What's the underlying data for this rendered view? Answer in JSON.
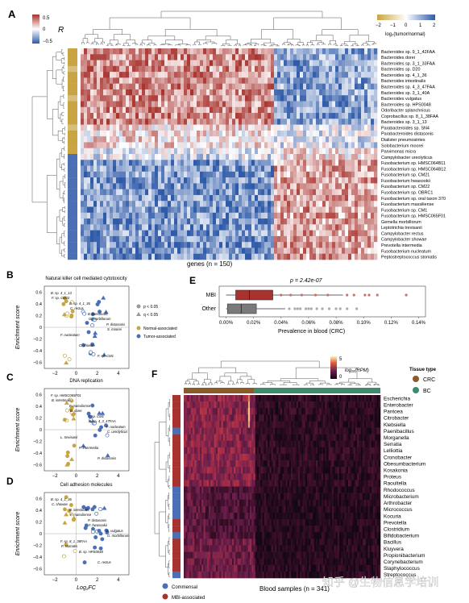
{
  "panel_a": {
    "letter": "A",
    "colorbar_R": {
      "ticks": [
        "0.5",
        "0",
        "−0.5"
      ],
      "label": "R"
    },
    "colorbar_fc": {
      "ticks": [
        "−2",
        "−1",
        "0",
        "1",
        "2"
      ],
      "label": "log₂(tumor/normal)"
    },
    "xlabel": "genes (n = 150)",
    "rows": [
      "Bacteroides sp. 9_1_42FAA",
      "Bacteroides dorei",
      "Bacteroides sp. 3_1_33FAA",
      "Bacteroides sp. D20",
      "Bacteroides sp. 4_1_36",
      "Bacteroides intestinalis",
      "Bacteroides sp. 4_3_47FAA",
      "Bacteroides sp. 3_1_40A",
      "Bacteroides vulgatus",
      "Bacteroides sp. HPS0048",
      "Odoribacter splanchnicus",
      "Coprobacillus sp. 8_1_38FAA",
      "Bacteroides sp. 3_1_13",
      "Parabacteroides sp. SN4",
      "Parabacteroides distasonis",
      "Dialister pneumosintes",
      "Solobacterium moorei",
      "Parvimonas micra",
      "Campylobacter ureolyticus",
      "Fusobacterium sp. HMSC064B11",
      "Fusobacterium sp. HMSC064B12",
      "Fusobacterium sp. CM21",
      "Fusobacterium hwasookii",
      "Fusobacterium sp. CM22",
      "Fusobacterium sp. OBRC1",
      "Fusobacterium sp. oral taxon 370",
      "Fusobacterium massiliense",
      "Fusobacterium sp. CM1",
      "Fusobacterium sp. HMSC065F01",
      "Gemella morbillorum",
      "Leptotrichia trevisanii",
      "Campylobacter rectus",
      "Campylobacter showae",
      "Prevotella intermedia",
      "Fusobacterium nucleatum",
      "Peptostreptococcus stomatis"
    ]
  },
  "panel_b": {
    "letter": "B",
    "title": "Natural killer cell mediated cytotoxicity",
    "ylabel": "Enrichment score",
    "labels": [
      "B. sp. 3_1_13",
      "B. sp. 4_1_36",
      "B. intestinalis",
      "P. distasonis",
      "F. nucleatum",
      "C. showae",
      "F. sp. CM1",
      "F. sp. CM22",
      "C. rectus",
      "G. morbillorum",
      "S. moorei"
    ],
    "legend": {
      "p": "p < 0.05",
      "q": "q < 0.05",
      "normal": "Normal-associated",
      "tumor": "Tumor-associated"
    },
    "colors": {
      "normal": "#c8a443",
      "tumor": "#4a6fb5"
    }
  },
  "panel_c": {
    "letter": "C",
    "title": "DNA replication",
    "ylabel": "Enrichment score",
    "labels": [
      "F. sp. HMSC065F01",
      "F. massiliense",
      "F. sp. CM1",
      "F. nucleatum",
      "L. trevisanii",
      "P. intermedia",
      "P. distasonis",
      "B. intestinalis",
      "B. dorei",
      "B. sp. 4_3_47FAA",
      "C. ureolyticus"
    ]
  },
  "panel_d": {
    "letter": "D",
    "title": "Cell adhesion molecules",
    "ylabel": "Enrichment score",
    "xlabel": "Log₂FC",
    "labels": [
      "B. sp. 4_1_36",
      "B. intestinalis",
      "P. distasonis",
      "B. vulgatus",
      "F. sp. 8_1_38FAA",
      "B. sp. HPS0048",
      "C. rectus",
      "C. showae",
      "F. massiliense",
      "F. hwasookii",
      "G. morbillorum",
      "P. stomatis"
    ]
  },
  "ticks_y": [
    "0.6",
    "0.4",
    "0.2",
    "0",
    "−0.2",
    "−0.4",
    "−0.6"
  ],
  "ticks_x": [
    "−2",
    "0",
    "2",
    "4"
  ],
  "panel_e": {
    "letter": "E",
    "pvalue": "p = 2.42e-07",
    "xlabel": "Prevalence in blood (CRC)",
    "categories": [
      "MBI",
      "Other"
    ],
    "xticks": [
      "0.00%",
      "0.02%",
      "0.04%",
      "0.06%",
      "0.08%",
      "0.10%",
      "0.12%",
      "0.14%"
    ]
  },
  "panel_f": {
    "letter": "F",
    "colorbar": {
      "ticks": [
        "5",
        "0"
      ],
      "label": "log₁₀(RPM)"
    },
    "tissue_legend": {
      "title": "Tissue type",
      "items": [
        "CRC",
        "BC"
      ]
    },
    "row_legend": [
      "Commensal",
      "MBI-associated"
    ],
    "xlabel": "Blood samples (n = 341)",
    "rows": [
      "Escherichia",
      "Enterobacter",
      "Pantoea",
      "Citrobacter",
      "Klebsiella",
      "Paenibacillus",
      "Morganella",
      "Serratia",
      "Lelliottia",
      "Cronobacter",
      "Obesumbacterium",
      "Kosakonia",
      "Proteus",
      "Raoultella",
      "Rhodococcus",
      "Microbacterium",
      "Arthrobacter",
      "Micrococcus",
      "Kocuria",
      "Prevotella",
      "Clostridium",
      "Bifidobacterium",
      "Bacillus",
      "Kluyvera",
      "Propionibacterium",
      "Corynebacterium",
      "Staphylococcus",
      "Streptococcus"
    ],
    "colors": {
      "crc": "#8b5a2b",
      "bc": "#3d8a6e",
      "commensal": "#4a6fb5",
      "mbi": "#a8322d"
    }
  },
  "watermark": "知乎 @生物信息学培训"
}
